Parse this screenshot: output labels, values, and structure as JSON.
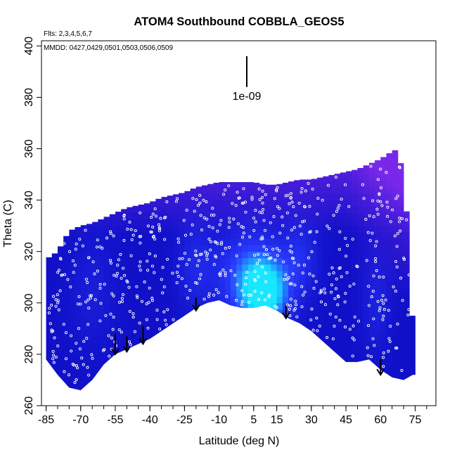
{
  "chart_data": {
    "type": "heatmap",
    "title": "ATOM4 Southbound COBBLA_GEOS5",
    "subtitle": "Flts: 2,3,4,5,6,7",
    "annotation": "MMDD: 0427,0429,0501,0503,0506,0509",
    "xlabel": "Latitude (deg N)",
    "ylabel": "Theta (C)",
    "xlim": [
      -87,
      84
    ],
    "ylim": [
      260,
      402
    ],
    "xticks": [
      -85,
      -70,
      -55,
      -40,
      -25,
      -10,
      5,
      15,
      30,
      45,
      60,
      75
    ],
    "xtick_labels": [
      "-85",
      "-70",
      "-55",
      "-40",
      "-25",
      "-10",
      "5",
      "15",
      "30",
      "45",
      "60",
      "75"
    ],
    "xminor_step": 5,
    "yticks": [
      260,
      280,
      300,
      320,
      340,
      360,
      380,
      400
    ],
    "ytick_labels": [
      "260",
      "280",
      "300",
      "320",
      "340",
      "360",
      "380",
      "400"
    ],
    "scale_bar": {
      "label": "1e-09",
      "x": 2,
      "y_top": 396,
      "y_bottom": 384
    },
    "colors": {
      "low": "#1010c8",
      "mid": "#2a3cff",
      "high": "#19e6ff",
      "upper": "#8c2cf0",
      "ground": "#ffffff"
    },
    "domain_top": [
      [
        -85,
        317
      ],
      [
        -80,
        320
      ],
      [
        -75,
        328
      ],
      [
        -70,
        330
      ],
      [
        -65,
        331
      ],
      [
        -60,
        333
      ],
      [
        -55,
        335
      ],
      [
        -50,
        337
      ],
      [
        -45,
        338
      ],
      [
        -40,
        339
      ],
      [
        -35,
        341
      ],
      [
        -30,
        342
      ],
      [
        -25,
        343
      ],
      [
        -20,
        345
      ],
      [
        -15,
        346
      ],
      [
        -10,
        347
      ],
      [
        -5,
        347
      ],
      [
        0,
        347
      ],
      [
        5,
        347
      ],
      [
        10,
        346
      ],
      [
        15,
        346
      ],
      [
        20,
        347
      ],
      [
        25,
        348
      ],
      [
        30,
        348
      ],
      [
        35,
        349
      ],
      [
        40,
        350
      ],
      [
        45,
        351
      ],
      [
        50,
        352
      ],
      [
        55,
        354
      ],
      [
        60,
        356
      ],
      [
        65,
        359
      ],
      [
        68,
        360
      ],
      [
        70,
        345
      ],
      [
        72,
        330
      ],
      [
        73,
        310
      ],
      [
        74,
        290
      ]
    ],
    "domain_bottom": [
      [
        -85,
        278
      ],
      [
        -80,
        272
      ],
      [
        -75,
        267
      ],
      [
        -70,
        266
      ],
      [
        -65,
        270
      ],
      [
        -60,
        276
      ],
      [
        -55,
        280
      ],
      [
        -50,
        282
      ],
      [
        -45,
        284
      ],
      [
        -40,
        286
      ],
      [
        -35,
        289
      ],
      [
        -30,
        292
      ],
      [
        -25,
        295
      ],
      [
        -20,
        298
      ],
      [
        -15,
        300
      ],
      [
        -10,
        301
      ],
      [
        -5,
        299
      ],
      [
        0,
        298
      ],
      [
        5,
        298
      ],
      [
        10,
        299
      ],
      [
        15,
        297
      ],
      [
        20,
        294
      ],
      [
        25,
        292
      ],
      [
        30,
        289
      ],
      [
        35,
        285
      ],
      [
        40,
        281
      ],
      [
        45,
        277
      ],
      [
        50,
        277
      ],
      [
        55,
        278
      ],
      [
        60,
        274
      ],
      [
        65,
        271
      ],
      [
        70,
        270
      ],
      [
        74,
        272
      ]
    ],
    "hotspots": [
      {
        "lat": 10,
        "theta": 304,
        "value": 1.0,
        "rlat": 10,
        "rtheta": 13
      },
      {
        "lat": 3,
        "theta": 310,
        "value": 0.55,
        "rlat": 14,
        "rtheta": 18
      },
      {
        "lat": 25,
        "theta": 318,
        "value": 0.3,
        "rlat": 8,
        "rtheta": 14
      },
      {
        "lat": -20,
        "theta": 315,
        "value": 0.25,
        "rlat": 8,
        "rtheta": 18
      },
      {
        "lat": -65,
        "theta": 305,
        "value": 0.15,
        "rlat": 10,
        "rtheta": 22
      },
      {
        "lat": 58,
        "theta": 300,
        "value": 0.2,
        "rlat": 6,
        "rtheta": 18
      }
    ],
    "arrows": [
      {
        "lat": -55,
        "theta_top": 288,
        "theta_bottom": 280
      },
      {
        "lat": -50,
        "theta_top": 287,
        "theta_bottom": 281
      },
      {
        "lat": -43,
        "theta_top": 291,
        "theta_bottom": 284
      },
      {
        "lat": -20,
        "theta_top": 302,
        "theta_bottom": 297
      },
      {
        "lat": 19,
        "theta_top": 299,
        "theta_bottom": 294
      },
      {
        "lat": 60,
        "theta_top": 278,
        "theta_bottom": 272
      }
    ]
  }
}
